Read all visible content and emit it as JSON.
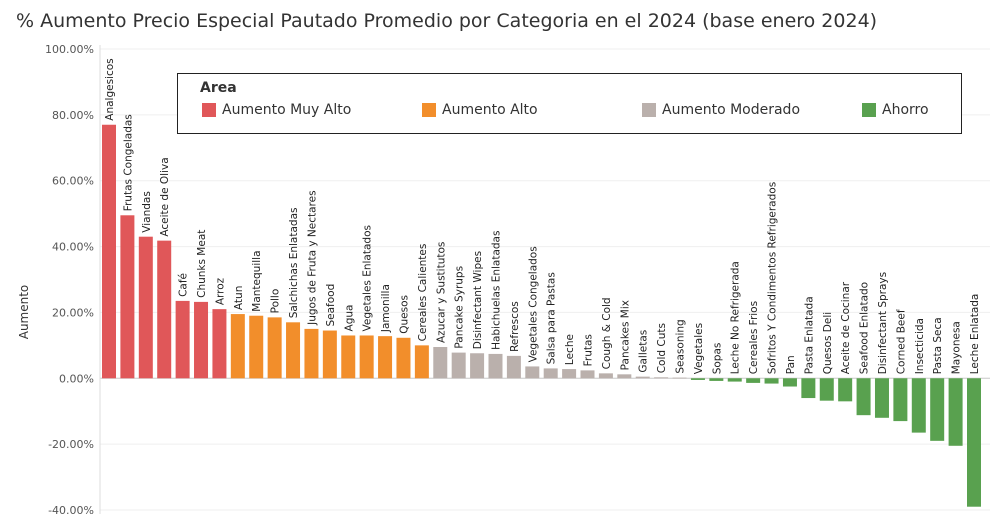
{
  "title": "% Aumento Precio Especial Pautado Promedio por Categoria en el 2024 (base enero 2024)",
  "legend": {
    "title": "Area",
    "items": [
      {
        "label": "Aumento Muy Alto",
        "color": "#e05759"
      },
      {
        "label": "Aumento Alto",
        "color": "#f28e2b"
      },
      {
        "label": "Aumento Moderado",
        "color": "#bab0ac"
      },
      {
        "label": "Ahorro",
        "color": "#59a14f"
      }
    ]
  },
  "chart_data": {
    "type": "bar",
    "title": "% Aumento Precio Especial Pautado Promedio por Categoria en el 2024 (base enero 2024)",
    "ylabel": "Aumento",
    "xlabel": "",
    "ylim": [
      -40,
      100
    ],
    "yticks": [
      "100.00%",
      "80.00%",
      "60.00%",
      "40.00%",
      "20.00%",
      "0.00%",
      "-20.00%",
      "-40.00%"
    ],
    "grid": true,
    "legend_placement": "top",
    "categories": [
      "Analgesicos",
      "Frutas Congeladas",
      "Viandas",
      "Aceite de Oliva",
      "Café",
      "Chunks Meat",
      "Arroz",
      "Atun",
      "Mantequilla",
      "Pollo",
      "Salchichas Enlatadas",
      "Jugos de Fruta y Nectares",
      "Seafood",
      "Agua",
      "Vegetales Enlatados",
      "Jamonilla",
      "Quesos",
      "Cereales Calientes",
      "Azucar y Sustitutos",
      "Pancake Syrups",
      "Disinfectant Wipes",
      "Habichuelas Enlatadas",
      "Refrescos",
      "Vegetales Congelados",
      "Salsa para Pastas",
      "Leche",
      "Frutas",
      "Cough & Cold",
      "Pancakes Mix",
      "Galletas",
      "Cold Cuts",
      "Seasoning",
      "Vegetales",
      "Sopas",
      "Leche No Refrigerada",
      "Cereales Frios",
      "Sofritos Y Condimentos Refrigerados",
      "Pan",
      "Pasta Enlatada",
      "Quesos Deli",
      "Aceite de Cocinar",
      "Seafood Enlatado",
      "Disinfectant Sprays",
      "Corned Beef",
      "Insecticida",
      "Pasta Seca",
      "Mayonesa",
      "Leche Enlatada"
    ],
    "values": [
      77.0,
      49.5,
      43.0,
      41.8,
      23.5,
      23.2,
      21.0,
      19.5,
      19.0,
      18.5,
      17.0,
      15.0,
      14.5,
      13.0,
      13.0,
      12.8,
      12.3,
      10.0,
      9.5,
      7.8,
      7.6,
      7.4,
      6.8,
      3.6,
      3.0,
      2.8,
      2.4,
      1.5,
      1.2,
      0.5,
      0.3,
      0.2,
      -0.5,
      -0.8,
      -1.0,
      -1.4,
      -1.6,
      -2.5,
      -6.0,
      -6.8,
      -7.0,
      -11.2,
      -12.0,
      -13.0,
      -16.5,
      -19.0,
      -20.5,
      -39.0
    ],
    "groups": [
      "Aumento Muy Alto",
      "Aumento Muy Alto",
      "Aumento Muy Alto",
      "Aumento Muy Alto",
      "Aumento Muy Alto",
      "Aumento Muy Alto",
      "Aumento Muy Alto",
      "Aumento Alto",
      "Aumento Alto",
      "Aumento Alto",
      "Aumento Alto",
      "Aumento Alto",
      "Aumento Alto",
      "Aumento Alto",
      "Aumento Alto",
      "Aumento Alto",
      "Aumento Alto",
      "Aumento Alto",
      "Aumento Moderado",
      "Aumento Moderado",
      "Aumento Moderado",
      "Aumento Moderado",
      "Aumento Moderado",
      "Aumento Moderado",
      "Aumento Moderado",
      "Aumento Moderado",
      "Aumento Moderado",
      "Aumento Moderado",
      "Aumento Moderado",
      "Aumento Moderado",
      "Aumento Moderado",
      "Aumento Moderado",
      "Ahorro",
      "Ahorro",
      "Ahorro",
      "Ahorro",
      "Ahorro",
      "Ahorro",
      "Ahorro",
      "Ahorro",
      "Ahorro",
      "Ahorro",
      "Ahorro",
      "Ahorro",
      "Ahorro",
      "Ahorro",
      "Ahorro",
      "Ahorro"
    ]
  }
}
